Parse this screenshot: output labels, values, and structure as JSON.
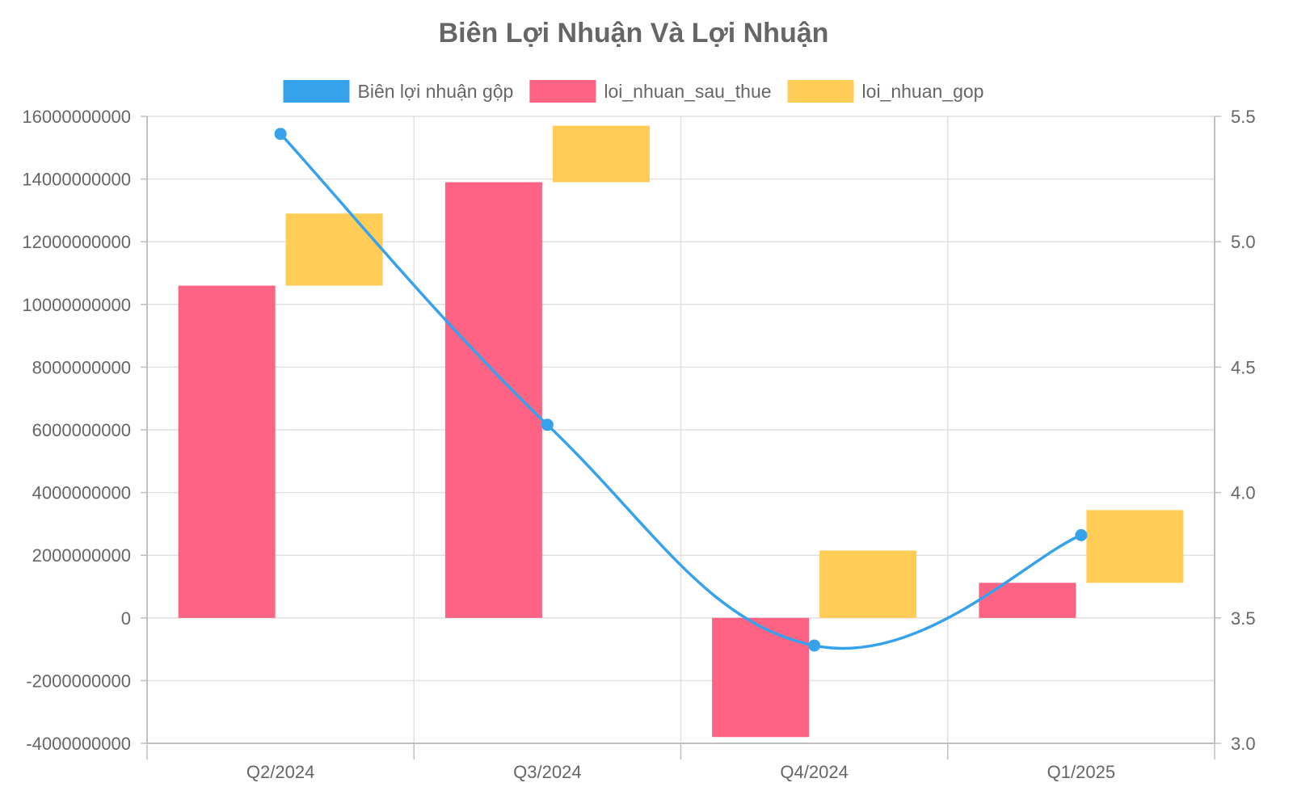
{
  "chart_data": {
    "type": "bar",
    "title": "Biên Lợi Nhuận Và Lợi Nhuận",
    "categories": [
      "Q2/2024",
      "Q3/2024",
      "Q4/2024",
      "Q1/2025"
    ],
    "legend_position": "top",
    "grid": true,
    "series": [
      {
        "name": "Biên lợi nhuận gộp",
        "type": "line",
        "axis": "right",
        "color": "#36a2eb",
        "values": [
          5.43,
          4.27,
          3.39,
          3.83
        ]
      },
      {
        "name": "loi_nhuan_sau_thue",
        "type": "bar",
        "axis": "left",
        "color": "#ff6384",
        "values": [
          10600000000,
          13900000000,
          -3800000000,
          1120000000
        ]
      },
      {
        "name": "loi_nhuan_gop",
        "type": "bar",
        "axis": "left",
        "stacked_on": "loi_nhuan_sau_thue",
        "color": "#ffcd56",
        "values": [
          2300000000,
          1800000000,
          2150000000,
          2320000000
        ]
      }
    ],
    "y_left": {
      "ylim": [
        -4000000000,
        16000000000
      ],
      "ticks": [
        "16000000000",
        "14000000000",
        "12000000000",
        "10000000000",
        "8000000000",
        "6000000000",
        "4000000000",
        "2000000000",
        "0",
        "-2000000000",
        "-4000000000"
      ]
    },
    "y_right": {
      "ylim": [
        3.0,
        5.5
      ],
      "ticks": [
        "5.5",
        "5.0",
        "4.5",
        "4.0",
        "3.5",
        "3.0"
      ]
    }
  }
}
